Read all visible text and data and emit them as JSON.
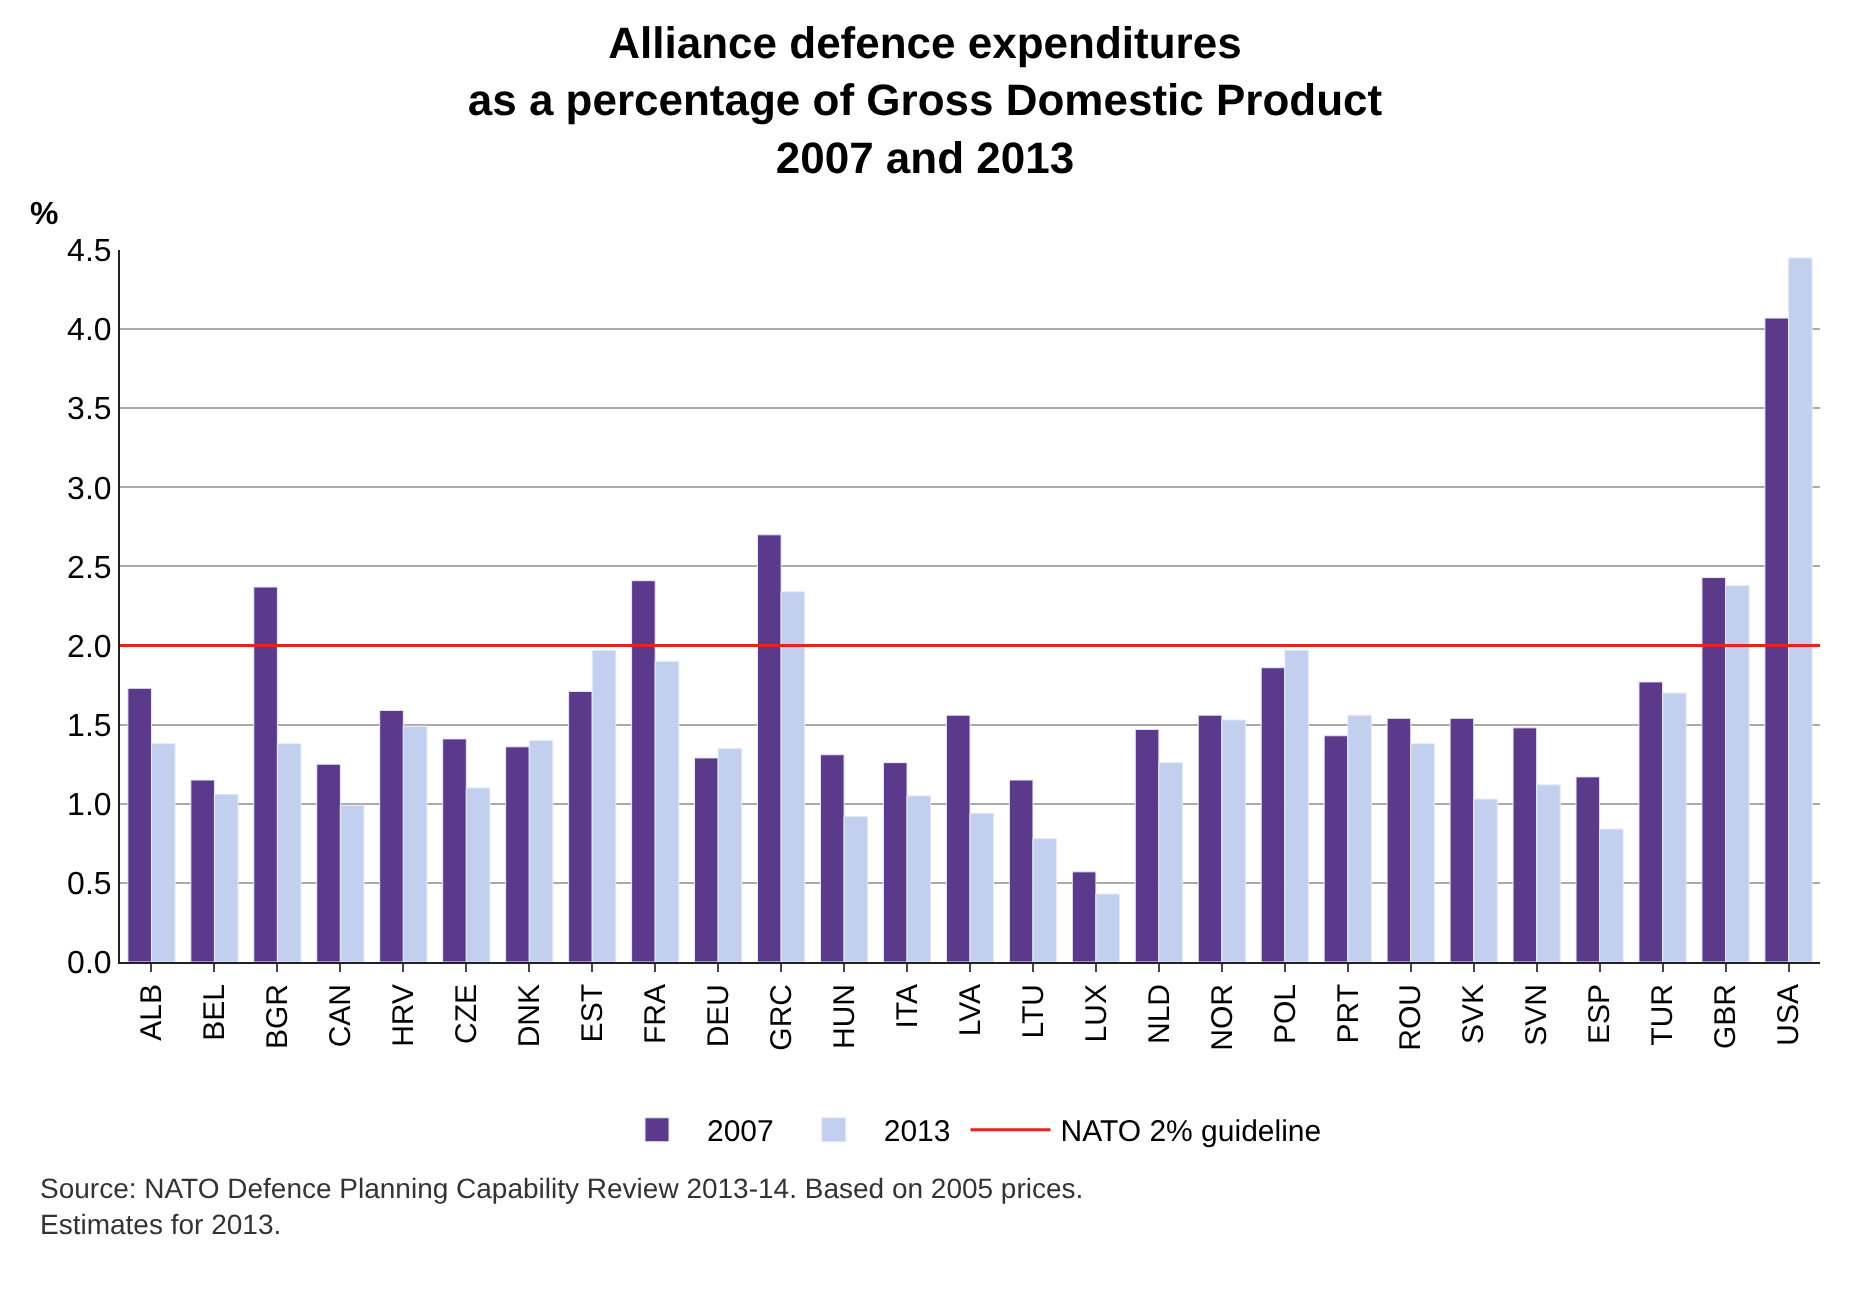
{
  "chart_data": {
    "type": "bar",
    "title": "Alliance defence expenditures\nas a percentage of Gross Domestic Product\n2007 and 2013",
    "ylabel": "%",
    "categories": [
      "ALB",
      "BEL",
      "BGR",
      "CAN",
      "HRV",
      "CZE",
      "DNK",
      "EST",
      "FRA",
      "DEU",
      "GRC",
      "HUN",
      "ITA",
      "LVA",
      "LTU",
      "LUX",
      "NLD",
      "NOR",
      "POL",
      "PRT",
      "ROU",
      "SVK",
      "SVN",
      "ESP",
      "TUR",
      "GBR",
      "USA"
    ],
    "series": [
      {
        "name": "2007",
        "color": "#5b3a8c",
        "values": [
          1.73,
          1.15,
          2.37,
          1.25,
          1.59,
          1.41,
          1.36,
          1.71,
          2.41,
          1.29,
          2.7,
          1.31,
          1.26,
          1.56,
          1.15,
          0.57,
          1.47,
          1.56,
          1.86,
          1.43,
          1.54,
          1.54,
          1.48,
          1.17,
          1.77,
          2.43,
          4.07
        ]
      },
      {
        "name": "2013",
        "color": "#c3cfee",
        "values": [
          1.38,
          1.06,
          1.38,
          0.99,
          1.49,
          1.1,
          1.4,
          1.97,
          1.9,
          1.35,
          2.34,
          0.92,
          1.05,
          0.94,
          0.78,
          0.43,
          1.26,
          1.53,
          1.97,
          1.56,
          1.38,
          1.03,
          1.12,
          0.84,
          1.7,
          2.38,
          4.45
        ]
      }
    ],
    "ylim": [
      0,
      4.5
    ],
    "yticks": [
      {
        "value": 0,
        "label": "0.0"
      },
      {
        "value": 0.5,
        "label": "0.5"
      },
      {
        "value": 1,
        "label": "1.0"
      },
      {
        "value": 1.5,
        "label": "1.5"
      },
      {
        "value": 2,
        "label": "2.0"
      },
      {
        "value": 2.5,
        "label": "2.5"
      },
      {
        "value": 3,
        "label": "3.0"
      },
      {
        "value": 3.5,
        "label": "3.5"
      },
      {
        "value": 4,
        "label": "4.0"
      },
      {
        "value": 4.5,
        "label": "4.5"
      }
    ],
    "ref_lines": [
      {
        "axis": "y",
        "value": 2,
        "label": "NATO 2% guideline",
        "color": "#e8221c"
      }
    ],
    "annotations": [
      "Source: NATO Defence Planning Capability Review 2013-14. Based on 2005 prices.\nEstimates for 2013."
    ],
    "grid": "y",
    "legend": "bottom"
  }
}
